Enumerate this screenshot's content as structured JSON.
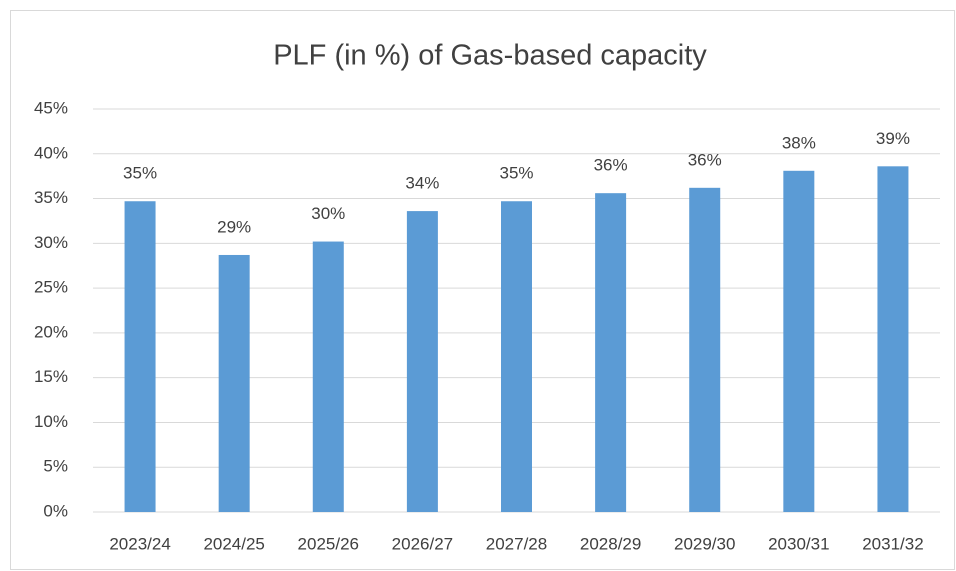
{
  "chart_data": {
    "type": "bar",
    "title": "PLF (in %) of Gas-based capacity",
    "categories": [
      "2023/24",
      "2024/25",
      "2025/26",
      "2026/27",
      "2027/28",
      "2028/29",
      "2029/30",
      "2030/31",
      "2031/32"
    ],
    "values": [
      34.7,
      28.7,
      30.2,
      33.6,
      34.7,
      35.6,
      36.2,
      38.1,
      38.6
    ],
    "value_labels": [
      "35%",
      "29%",
      "30%",
      "34%",
      "35%",
      "36%",
      "36%",
      "38%",
      "39%"
    ],
    "color": "#5b9bd5",
    "ylim": [
      0,
      45
    ],
    "yticks": [
      {
        "value": 0,
        "label": "0%"
      },
      {
        "value": 5,
        "label": "5%"
      },
      {
        "value": 10,
        "label": "10%"
      },
      {
        "value": 15,
        "label": "15%"
      },
      {
        "value": 20,
        "label": "20%"
      },
      {
        "value": 25,
        "label": "25%"
      },
      {
        "value": 30,
        "label": "30%"
      },
      {
        "value": 35,
        "label": "35%"
      },
      {
        "value": 40,
        "label": "40%"
      },
      {
        "value": 45,
        "label": "45%"
      }
    ],
    "grid": true
  }
}
